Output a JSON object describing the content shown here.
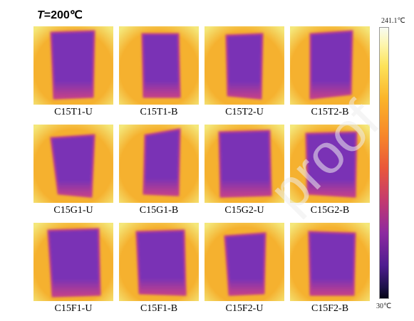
{
  "title": {
    "prefix": "T",
    "suffix": "=200℃"
  },
  "colorbar": {
    "max_label": "241.1℃",
    "min_label": "30℃"
  },
  "samples": [
    {
      "label": "C15T1-U"
    },
    {
      "label": "C15T1-B"
    },
    {
      "label": "C15T2-U"
    },
    {
      "label": "C15T2-B"
    },
    {
      "label": "C15G1-U"
    },
    {
      "label": "C15G1-B"
    },
    {
      "label": "C15G2-U"
    },
    {
      "label": "C15G2-B"
    },
    {
      "label": "C15F1-U"
    },
    {
      "label": "C15F1-B"
    },
    {
      "label": "C15F2-U"
    },
    {
      "label": "C15F2-B"
    }
  ],
  "watermark": "proof",
  "colors": {
    "background": "#f5b12f",
    "edge_hot": "#f4e77a",
    "specimen": "#7a33b5",
    "specimen_edge": "#c1408b"
  }
}
